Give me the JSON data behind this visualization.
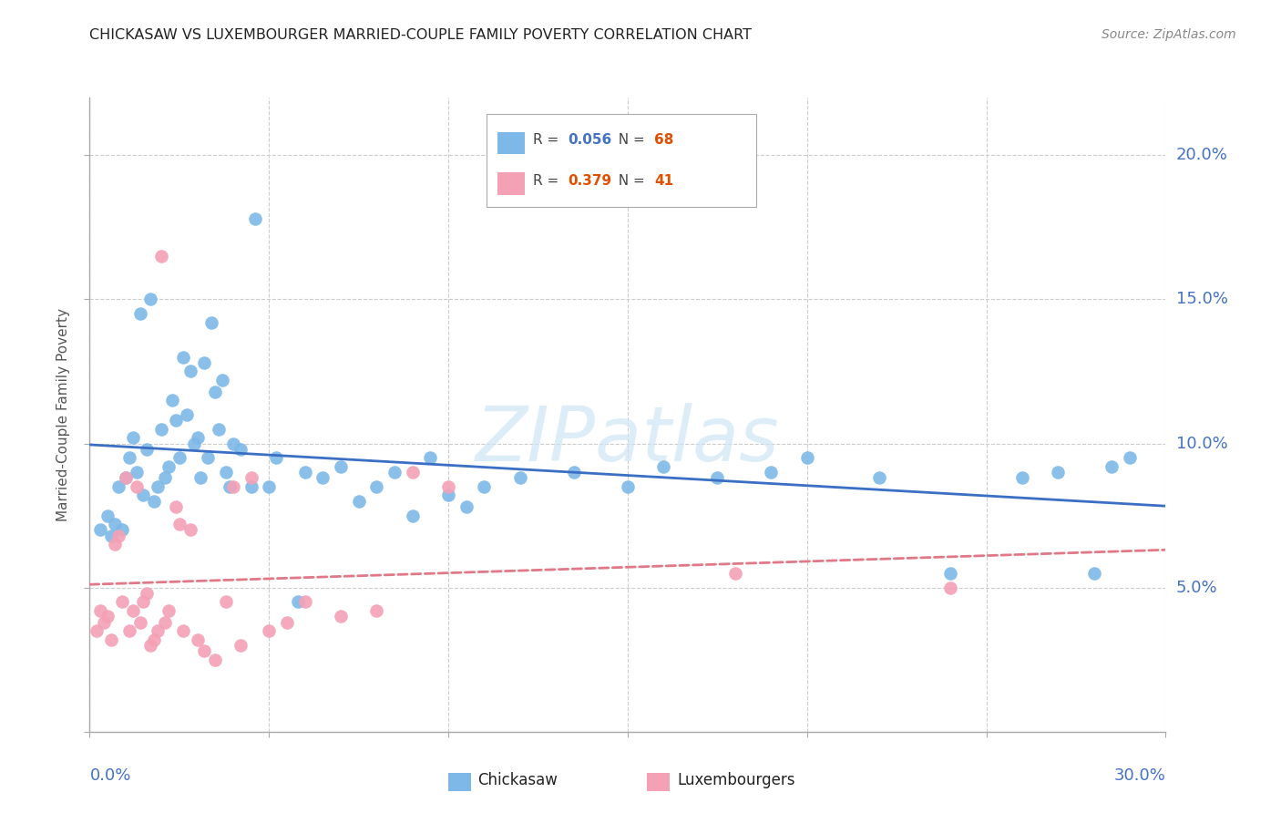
{
  "title": "CHICKASAW VS LUXEMBOURGER MARRIED-COUPLE FAMILY POVERTY CORRELATION CHART",
  "source": "Source: ZipAtlas.com",
  "ylabel": "Married-Couple Family Poverty",
  "watermark": "ZIPatlas",
  "chickasaw_color": "#7db8e8",
  "luxembourger_color": "#f4a0b5",
  "trendline_chickasaw_color": "#3a6fc4",
  "trendline_luxembourger_color": "#e07888",
  "label_color": "#4472c4",
  "chickasaw_x": [
    0.3,
    0.5,
    0.6,
    0.7,
    0.8,
    0.9,
    1.0,
    1.1,
    1.2,
    1.3,
    1.4,
    1.5,
    1.6,
    1.7,
    1.8,
    1.9,
    2.0,
    2.1,
    2.2,
    2.3,
    2.4,
    2.5,
    2.6,
    2.7,
    2.8,
    2.9,
    3.0,
    3.1,
    3.2,
    3.3,
    3.4,
    3.5,
    3.6,
    3.7,
    3.8,
    3.9,
    4.0,
    4.2,
    4.5,
    4.6,
    5.0,
    5.2,
    5.8,
    6.0,
    6.5,
    7.0,
    7.5,
    8.0,
    8.5,
    9.0,
    9.5,
    10.0,
    10.5,
    11.0,
    12.0,
    13.5,
    15.0,
    16.0,
    17.5,
    19.0,
    20.0,
    22.0,
    24.0,
    26.0,
    27.0,
    28.0,
    28.5,
    29.0
  ],
  "chickasaw_y": [
    7.0,
    7.5,
    6.8,
    7.2,
    8.5,
    7.0,
    8.8,
    9.5,
    10.2,
    9.0,
    14.5,
    8.2,
    9.8,
    15.0,
    8.0,
    8.5,
    10.5,
    8.8,
    9.2,
    11.5,
    10.8,
    9.5,
    13.0,
    11.0,
    12.5,
    10.0,
    10.2,
    8.8,
    12.8,
    9.5,
    14.2,
    11.8,
    10.5,
    12.2,
    9.0,
    8.5,
    10.0,
    9.8,
    8.5,
    17.8,
    8.5,
    9.5,
    4.5,
    9.0,
    8.8,
    9.2,
    8.0,
    8.5,
    9.0,
    7.5,
    9.5,
    8.2,
    7.8,
    8.5,
    8.8,
    9.0,
    8.5,
    9.2,
    8.8,
    9.0,
    9.5,
    8.8,
    5.5,
    8.8,
    9.0,
    5.5,
    9.2,
    9.5
  ],
  "luxembourger_x": [
    0.2,
    0.3,
    0.4,
    0.5,
    0.6,
    0.7,
    0.8,
    0.9,
    1.0,
    1.1,
    1.2,
    1.3,
    1.4,
    1.5,
    1.6,
    1.7,
    1.8,
    1.9,
    2.0,
    2.1,
    2.2,
    2.4,
    2.5,
    2.6,
    2.8,
    3.0,
    3.2,
    3.5,
    3.8,
    4.0,
    4.2,
    4.5,
    5.0,
    5.5,
    6.0,
    7.0,
    8.0,
    9.0,
    10.0,
    18.0,
    24.0
  ],
  "luxembourger_y": [
    3.5,
    4.2,
    3.8,
    4.0,
    3.2,
    6.5,
    6.8,
    4.5,
    8.8,
    3.5,
    4.2,
    8.5,
    3.8,
    4.5,
    4.8,
    3.0,
    3.2,
    3.5,
    16.5,
    3.8,
    4.2,
    7.8,
    7.2,
    3.5,
    7.0,
    3.2,
    2.8,
    2.5,
    4.5,
    8.5,
    3.0,
    8.8,
    3.5,
    3.8,
    4.5,
    4.0,
    4.2,
    9.0,
    8.5,
    5.5,
    5.0
  ]
}
